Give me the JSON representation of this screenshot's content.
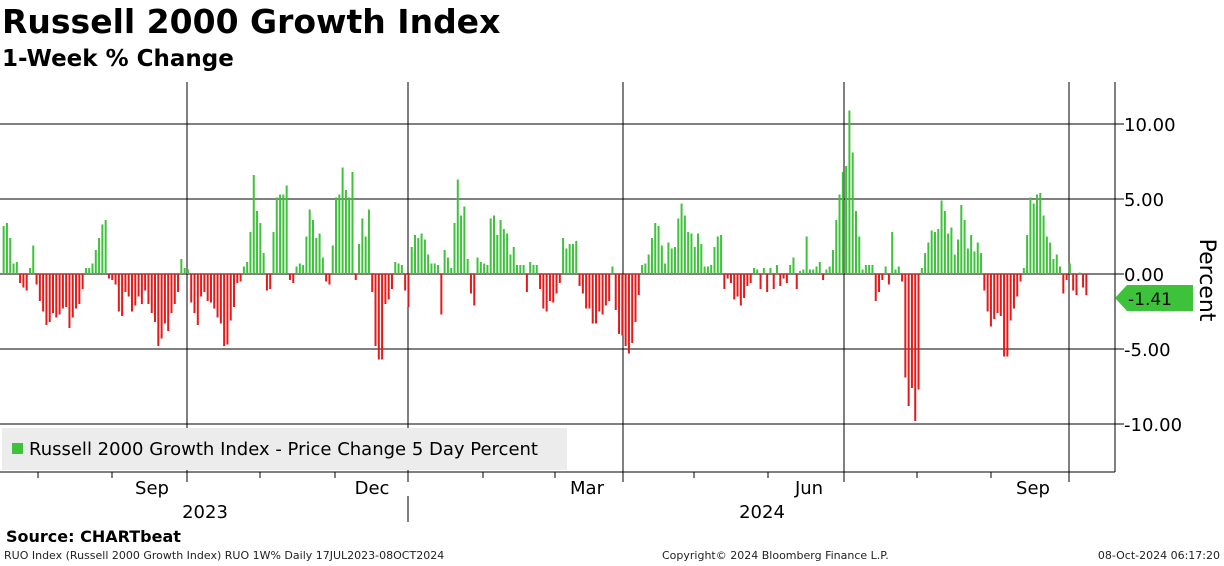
{
  "header": {
    "title": "Russell 2000 Growth Index",
    "subtitle": "1-Week % Change"
  },
  "chart_data": {
    "type": "bar",
    "title": "Russell 2000 Growth Index",
    "subtitle": "1-Week % Change",
    "ylabel": "Percent",
    "ylim": [
      -13.2,
      12.8
    ],
    "yticks": [
      10,
      5,
      0,
      -5,
      -10
    ],
    "ytick_labels": [
      "10.00",
      "5.00",
      "0.00",
      "-5.00",
      "-10.00"
    ],
    "x_month_labels": [
      "Sep",
      "Dec",
      "Mar",
      "Jun",
      "Sep"
    ],
    "x_year_labels": [
      "2023",
      "2024"
    ],
    "date_range": "17JUL2023-08OCT2024",
    "frequency": "Daily",
    "grid": true,
    "legend_position": "bottom-left",
    "positive_color": "#3ec23b",
    "negative_color": "#e41a1a",
    "last_value": -1.41,
    "last_value_label": "-1.41",
    "series": [
      {
        "name": "Russell 2000 Growth Index - Price Change 5 Day Percent",
        "values": [
          3.2,
          3.4,
          2.4,
          0.7,
          0.8,
          -0.6,
          -0.9,
          -1.1,
          0.4,
          1.9,
          -0.7,
          -1.8,
          -2.5,
          -3.4,
          -3.2,
          -2.6,
          -2.9,
          -2.7,
          -2.3,
          -2.2,
          -3.6,
          -2.9,
          -2.3,
          -2.0,
          -1.0,
          0.4,
          0.4,
          0.7,
          1.6,
          2.4,
          3.3,
          3.6,
          -0.3,
          -0.4,
          -0.7,
          -2.5,
          -2.8,
          -1.2,
          -1.5,
          -2.5,
          -2.1,
          -1.5,
          -2.0,
          -1.1,
          -2.0,
          -2.6,
          -3.2,
          -4.8,
          -4.3,
          -3.3,
          -3.8,
          -2.6,
          -2.0,
          -1.2,
          1.0,
          0.4,
          0.3,
          -1.9,
          -2.6,
          -3.4,
          -1.5,
          -1.2,
          -1.8,
          -1.9,
          -2.3,
          -2.9,
          -3.3,
          -4.8,
          -4.7,
          -3.1,
          -2.2,
          -0.6,
          -0.5,
          0.5,
          0.8,
          2.8,
          6.6,
          4.2,
          3.4,
          1.4,
          -1.1,
          -1.0,
          2.8,
          5.1,
          5.3,
          5.3,
          5.9,
          -0.4,
          -0.6,
          0.5,
          0.7,
          0.6,
          2.5,
          4.3,
          3.6,
          2.4,
          2.7,
          1.1,
          -0.5,
          -0.7,
          1.9,
          5.1,
          5.3,
          7.1,
          5.6,
          5.1,
          6.8,
          -0.4,
          2.0,
          3.7,
          2.5,
          4.3,
          -1.2,
          -4.8,
          -5.7,
          -5.7,
          -2.0,
          -1.7,
          -1.0,
          0.8,
          0.7,
          0.6,
          -1.1,
          -2.2,
          1.8,
          2.6,
          2.4,
          2.7,
          2.3,
          1.3,
          0.7,
          0.7,
          0.6,
          -2.7,
          1.6,
          1.1,
          0.4,
          3.4,
          6.3,
          3.9,
          4.5,
          1.0,
          -1.3,
          -2.1,
          1.1,
          0.8,
          0.7,
          0.6,
          3.7,
          3.9,
          2.6,
          3.6,
          3.0,
          2.7,
          1.3,
          1.8,
          0.6,
          0.6,
          0.6,
          -1.2,
          0.8,
          0.6,
          0.6,
          -1.0,
          -2.3,
          -2.5,
          -1.8,
          -1.9,
          -1.3,
          -0.6,
          2.4,
          1.7,
          2.0,
          2.0,
          2.2,
          -0.8,
          -1.3,
          -2.3,
          -2.3,
          -3.3,
          -3.3,
          -2.5,
          -2.7,
          -2.1,
          -1.8,
          0.5,
          -2.4,
          -4.0,
          -4.1,
          -4.8,
          -5.3,
          -4.6,
          -3.2,
          -1.4,
          0.6,
          0.7,
          1.3,
          2.4,
          3.4,
          3.2,
          1.9,
          0.7,
          2.1,
          1.7,
          1.8,
          3.7,
          4.7,
          3.9,
          2.8,
          2.7,
          1.8,
          2.7,
          2.0,
          0.5,
          0.5,
          0.6,
          1.8,
          2.5,
          2.6,
          -1.0,
          -0.3,
          -0.6,
          -1.7,
          -1.5,
          -2.1,
          -1.6,
          -0.8,
          -0.6,
          0.4,
          0.3,
          -1.0,
          0.4,
          -1.2,
          0.4,
          -1.0,
          0.6,
          -0.8,
          -0.3,
          -0.6,
          0.6,
          1.1,
          -1.0,
          0.2,
          0.3,
          2.5,
          0.3,
          0.3,
          0.5,
          0.8,
          -0.4,
          0.3,
          0.5,
          1.6,
          3.6,
          5.3,
          6.8,
          7.2,
          10.9,
          8.1,
          4.2,
          2.5,
          0.3,
          0.6,
          0.6,
          0.6,
          -1.8,
          -1.2,
          -0.4,
          0.5,
          -0.7,
          2.8,
          0.3,
          0.5,
          -0.5,
          -6.9,
          -8.8,
          -7.6,
          -9.8,
          -7.7,
          0.4,
          1.4,
          2.1,
          2.9,
          2.8,
          3.0,
          4.9,
          4.2,
          2.7,
          3.1,
          1.3,
          2.3,
          4.6,
          3.6,
          1.7,
          2.6,
          1.5,
          2.1,
          1.4,
          -1.1,
          -2.5,
          -3.5,
          -3.0,
          -2.6,
          -2.8,
          -5.5,
          -5.5,
          -3.1,
          -2.3,
          -1.5,
          -0.5,
          0.4,
          2.6,
          5.1,
          4.7,
          5.3,
          5.4,
          3.9,
          2.5,
          2.1,
          1.0,
          1.3,
          0.5,
          -1.3,
          -0.4,
          0.7,
          -1.1,
          -1.4,
          0.1,
          -0.9,
          -1.41
        ]
      }
    ]
  },
  "footer": {
    "source": "Source: CHARTbeat",
    "left_note": "RUO Index (Russell 2000 Growth Index) RUO 1W%  Daily 17JUL2023-08OCT2024",
    "copyright": "Copyright© 2024 Bloomberg Finance L.P.",
    "timestamp": "08-Oct-2024 06:17:20"
  }
}
